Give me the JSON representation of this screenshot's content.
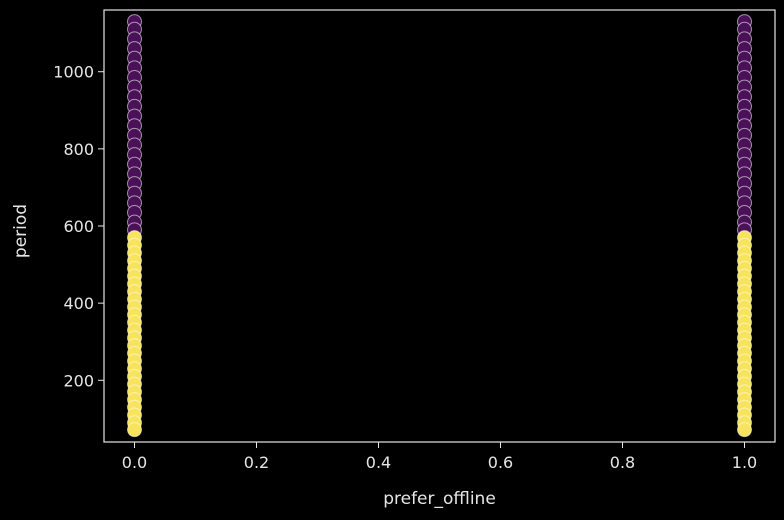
{
  "chart_data": {
    "type": "scatter",
    "title": "",
    "xlabel": "prefer_offline",
    "ylabel": "period",
    "xlim": [
      -0.05,
      1.05
    ],
    "ylim": [
      40,
      1160
    ],
    "x_ticks": [
      0.0,
      0.2,
      0.4,
      0.6,
      0.8,
      1.0
    ],
    "x_tick_labels": [
      "0.0",
      "0.2",
      "0.4",
      "0.6",
      "0.8",
      "1.0"
    ],
    "y_ticks": [
      200,
      400,
      600,
      800,
      1000
    ],
    "y_tick_labels": [
      "200",
      "400",
      "600",
      "800",
      "1000"
    ],
    "grid": false,
    "legend": "none",
    "background": "#000000",
    "colors": {
      "cluster_high_period": "#4b1158",
      "cluster_low_period": "#f7e35c",
      "marker_edge": "#ffffff",
      "axes": "#e6e6e6"
    },
    "series": [
      {
        "color": "#4b1158",
        "points": [
          {
            "x": 0,
            "y": 1130
          },
          {
            "x": 0,
            "y": 1110
          },
          {
            "x": 0,
            "y": 1085
          },
          {
            "x": 0,
            "y": 1060
          },
          {
            "x": 0,
            "y": 1035
          },
          {
            "x": 0,
            "y": 1010
          },
          {
            "x": 0,
            "y": 985
          },
          {
            "x": 0,
            "y": 960
          },
          {
            "x": 0,
            "y": 935
          },
          {
            "x": 0,
            "y": 910
          },
          {
            "x": 0,
            "y": 885
          },
          {
            "x": 0,
            "y": 860
          },
          {
            "x": 0,
            "y": 835
          },
          {
            "x": 0,
            "y": 810
          },
          {
            "x": 0,
            "y": 785
          },
          {
            "x": 0,
            "y": 760
          },
          {
            "x": 0,
            "y": 735
          },
          {
            "x": 0,
            "y": 710
          },
          {
            "x": 0,
            "y": 685
          },
          {
            "x": 0,
            "y": 660
          },
          {
            "x": 0,
            "y": 635
          },
          {
            "x": 0,
            "y": 610
          },
          {
            "x": 0,
            "y": 590
          },
          {
            "x": 1,
            "y": 1130
          },
          {
            "x": 1,
            "y": 1110
          },
          {
            "x": 1,
            "y": 1085
          },
          {
            "x": 1,
            "y": 1060
          },
          {
            "x": 1,
            "y": 1035
          },
          {
            "x": 1,
            "y": 1010
          },
          {
            "x": 1,
            "y": 985
          },
          {
            "x": 1,
            "y": 960
          },
          {
            "x": 1,
            "y": 935
          },
          {
            "x": 1,
            "y": 910
          },
          {
            "x": 1,
            "y": 885
          },
          {
            "x": 1,
            "y": 860
          },
          {
            "x": 1,
            "y": 835
          },
          {
            "x": 1,
            "y": 810
          },
          {
            "x": 1,
            "y": 785
          },
          {
            "x": 1,
            "y": 760
          },
          {
            "x": 1,
            "y": 735
          },
          {
            "x": 1,
            "y": 710
          },
          {
            "x": 1,
            "y": 685
          },
          {
            "x": 1,
            "y": 660
          },
          {
            "x": 1,
            "y": 635
          },
          {
            "x": 1,
            "y": 610
          },
          {
            "x": 1,
            "y": 590
          }
        ]
      },
      {
        "color": "#f7e35c",
        "points": [
          {
            "x": 0,
            "y": 570
          },
          {
            "x": 0,
            "y": 550
          },
          {
            "x": 0,
            "y": 530
          },
          {
            "x": 0,
            "y": 510
          },
          {
            "x": 0,
            "y": 490
          },
          {
            "x": 0,
            "y": 470
          },
          {
            "x": 0,
            "y": 450
          },
          {
            "x": 0,
            "y": 430
          },
          {
            "x": 0,
            "y": 410
          },
          {
            "x": 0,
            "y": 390
          },
          {
            "x": 0,
            "y": 370
          },
          {
            "x": 0,
            "y": 350
          },
          {
            "x": 0,
            "y": 330
          },
          {
            "x": 0,
            "y": 310
          },
          {
            "x": 0,
            "y": 290
          },
          {
            "x": 0,
            "y": 270
          },
          {
            "x": 0,
            "y": 250
          },
          {
            "x": 0,
            "y": 230
          },
          {
            "x": 0,
            "y": 210
          },
          {
            "x": 0,
            "y": 190
          },
          {
            "x": 0,
            "y": 170
          },
          {
            "x": 0,
            "y": 150
          },
          {
            "x": 0,
            "y": 130
          },
          {
            "x": 0,
            "y": 110
          },
          {
            "x": 0,
            "y": 90
          },
          {
            "x": 0,
            "y": 72
          },
          {
            "x": 1,
            "y": 570
          },
          {
            "x": 1,
            "y": 550
          },
          {
            "x": 1,
            "y": 530
          },
          {
            "x": 1,
            "y": 510
          },
          {
            "x": 1,
            "y": 490
          },
          {
            "x": 1,
            "y": 470
          },
          {
            "x": 1,
            "y": 450
          },
          {
            "x": 1,
            "y": 430
          },
          {
            "x": 1,
            "y": 410
          },
          {
            "x": 1,
            "y": 390
          },
          {
            "x": 1,
            "y": 370
          },
          {
            "x": 1,
            "y": 350
          },
          {
            "x": 1,
            "y": 330
          },
          {
            "x": 1,
            "y": 310
          },
          {
            "x": 1,
            "y": 290
          },
          {
            "x": 1,
            "y": 270
          },
          {
            "x": 1,
            "y": 250
          },
          {
            "x": 1,
            "y": 230
          },
          {
            "x": 1,
            "y": 210
          },
          {
            "x": 1,
            "y": 190
          },
          {
            "x": 1,
            "y": 170
          },
          {
            "x": 1,
            "y": 150
          },
          {
            "x": 1,
            "y": 130
          },
          {
            "x": 1,
            "y": 110
          },
          {
            "x": 1,
            "y": 90
          },
          {
            "x": 1,
            "y": 72
          }
        ]
      }
    ]
  }
}
